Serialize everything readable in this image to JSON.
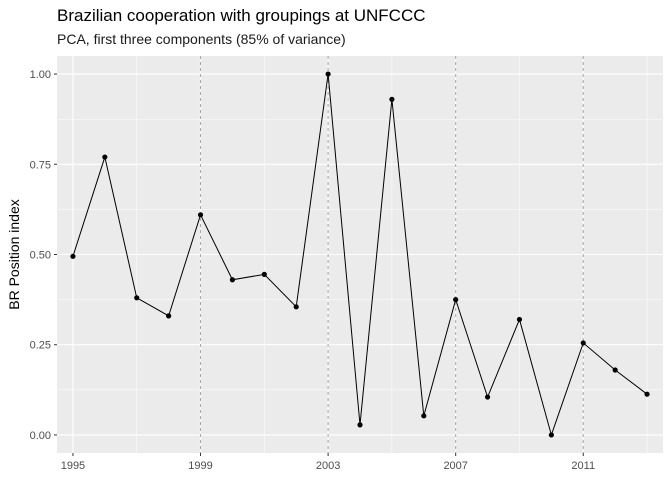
{
  "chart_data": {
    "type": "line",
    "title": "Brazilian cooperation with groupings at UNFCCC",
    "subtitle": "PCA, first three components (85% of variance)",
    "xlabel": "",
    "ylabel": "BR Position index",
    "xlim": [
      1994.5,
      2013.5
    ],
    "ylim": [
      -0.05,
      1.05
    ],
    "x_ticks": [
      "1995",
      "1999",
      "2003",
      "2007",
      "2011"
    ],
    "y_ticks": [
      "0.00",
      "0.25",
      "0.50",
      "0.75",
      "1.00"
    ],
    "x": [
      1995,
      1996,
      1997,
      1998,
      1999,
      2000,
      2001,
      2002,
      2003,
      2004,
      2005,
      2006,
      2007,
      2008,
      2009,
      2010,
      2011,
      2012,
      2013
    ],
    "values": [
      0.495,
      0.77,
      0.38,
      0.33,
      0.61,
      0.43,
      0.445,
      0.355,
      1.0,
      0.028,
      0.93,
      0.053,
      0.375,
      0.105,
      0.32,
      0.0,
      0.255,
      0.18,
      0.113
    ],
    "vlines": [
      1999,
      2003,
      2007,
      2011
    ],
    "grid": true,
    "legend": "none",
    "colors": {
      "panel": "#ebebeb",
      "grid": "#ffffff",
      "line": "#000000",
      "vline": "#a6a6a6"
    }
  }
}
